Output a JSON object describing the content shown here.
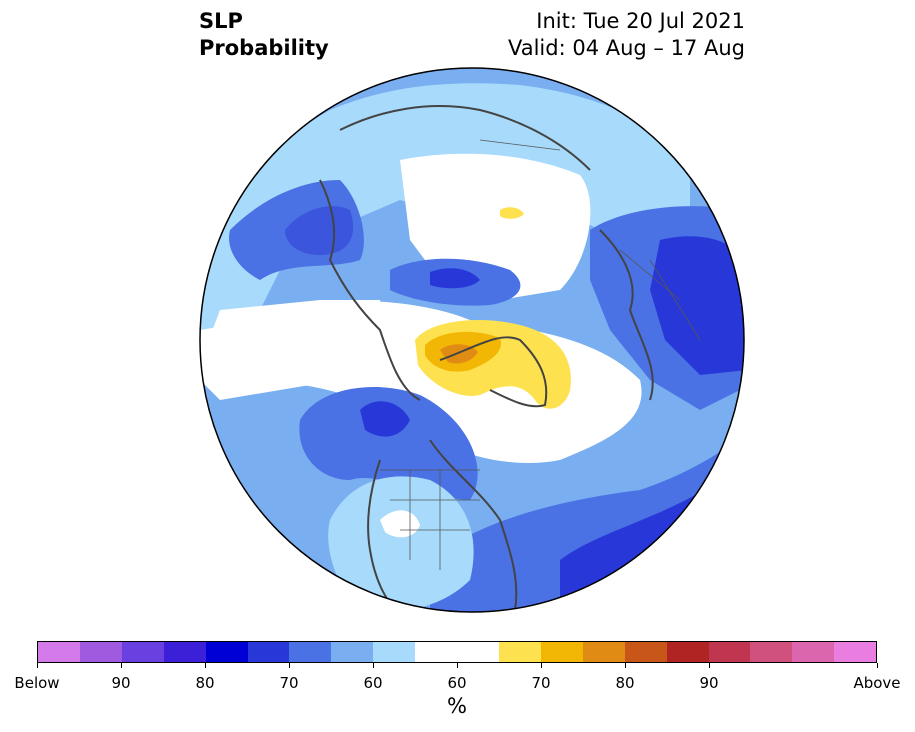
{
  "header": {
    "title_line1": "SLP",
    "title_line2": "Probability",
    "init_text": "Init: Tue 20 Jul 2021",
    "valid_text": "Valid: 04 Aug – 17 Aug"
  },
  "map": {
    "projection": "north-polar-stereographic",
    "land_outline_color": "#444444",
    "regions": [
      {
        "name": "north-atlantic-high-prob-above",
        "category": "above-60",
        "color": "#f2b705"
      },
      {
        "name": "greenland-above",
        "category": "above-50",
        "color": "#fde14e"
      },
      {
        "name": "arctic-below",
        "category": "below-70",
        "color": "#4a72e4"
      },
      {
        "name": "europe-below",
        "category": "below-80",
        "color": "#2838d8"
      },
      {
        "name": "pacific-below",
        "category": "below-70",
        "color": "#4a72e4"
      },
      {
        "name": "north-america-below",
        "category": "below-60",
        "color": "#79aef0"
      }
    ]
  },
  "colorbar": {
    "colors": [
      "#d57aeb",
      "#a05ae0",
      "#6a40e0",
      "#3b20d8",
      "#0000d6",
      "#2838d8",
      "#4a72e4",
      "#79aef0",
      "#a8dafc",
      "#ffffff",
      "#ffffff",
      "#fde14e",
      "#f2b705",
      "#e08b14",
      "#c85618",
      "#b02424",
      "#c03650",
      "#d0507e",
      "#db66ad",
      "#ea7ee0"
    ],
    "labels": [
      "Below",
      "90",
      "80",
      "70",
      "60",
      "60",
      "70",
      "80",
      "90",
      "Above"
    ],
    "units": "%"
  }
}
